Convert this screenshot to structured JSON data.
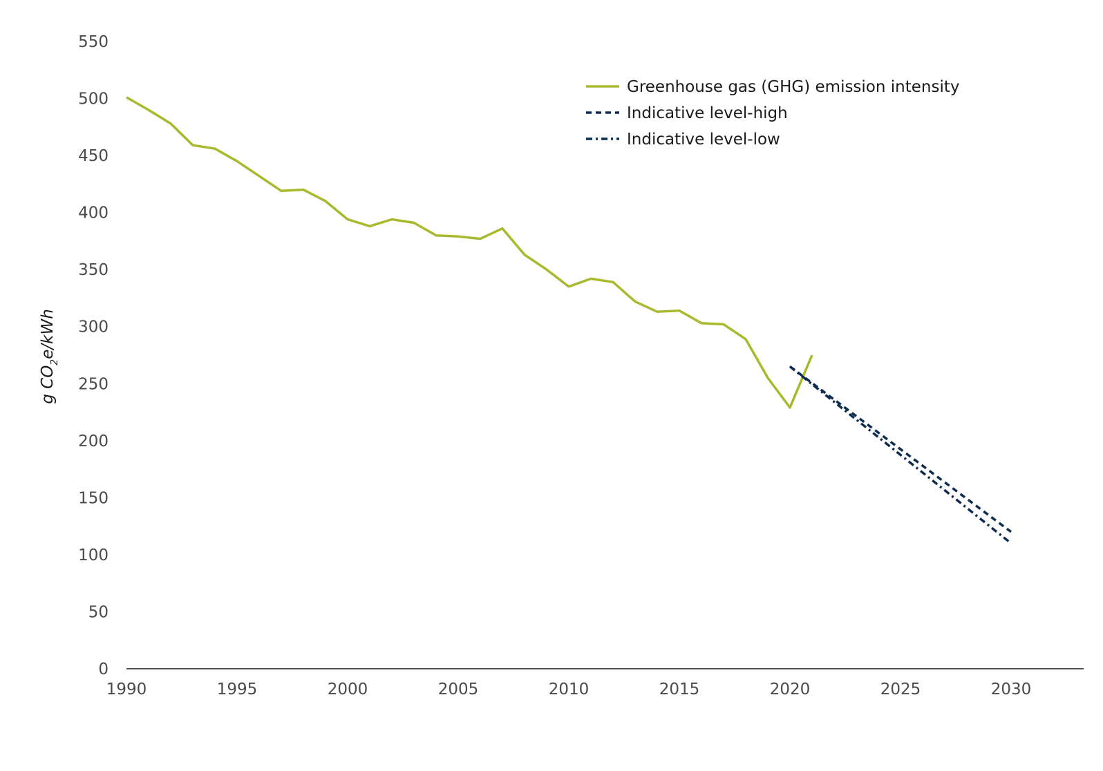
{
  "chart_data": {
    "type": "line",
    "title": "",
    "xlabel": "",
    "ylabel": {
      "prefix": "g CO",
      "subscript": "2",
      "suffix": "e/kWh"
    },
    "ylim": [
      0,
      550
    ],
    "xlim": [
      1990,
      2033
    ],
    "y_ticks": [
      0,
      50,
      100,
      150,
      200,
      250,
      300,
      350,
      400,
      450,
      500,
      550
    ],
    "x_ticks": [
      1990,
      1995,
      2000,
      2005,
      2010,
      2015,
      2020,
      2025,
      2030
    ],
    "grid": false,
    "legend_position": "top-right",
    "series": [
      {
        "name": "Greenhouse gas (GHG) emission intensity",
        "style": "solid",
        "color": "#a8b92d",
        "x": [
          1990,
          1991,
          1992,
          1993,
          1994,
          1995,
          1996,
          1997,
          1998,
          1999,
          2000,
          2001,
          2002,
          2003,
          2004,
          2005,
          2006,
          2007,
          2008,
          2009,
          2010,
          2011,
          2012,
          2013,
          2014,
          2015,
          2016,
          2017,
          2018,
          2019,
          2020,
          2021
        ],
        "values": [
          501,
          490,
          478,
          459,
          456,
          445,
          432,
          419,
          420,
          410,
          394,
          388,
          394,
          391,
          380,
          379,
          377,
          386,
          363,
          350,
          335,
          342,
          339,
          322,
          313,
          314,
          303,
          302,
          289,
          255,
          229,
          275
        ]
      },
      {
        "name": "Indicative level-high",
        "style": "dashed",
        "color": "#0d2d4f",
        "x": [
          2020,
          2030
        ],
        "values": [
          265,
          120
        ]
      },
      {
        "name": "Indicative level-low",
        "style": "dashdot",
        "color": "#0d2d4f",
        "x": [
          2020,
          2030
        ],
        "values": [
          265,
          110
        ]
      }
    ]
  }
}
